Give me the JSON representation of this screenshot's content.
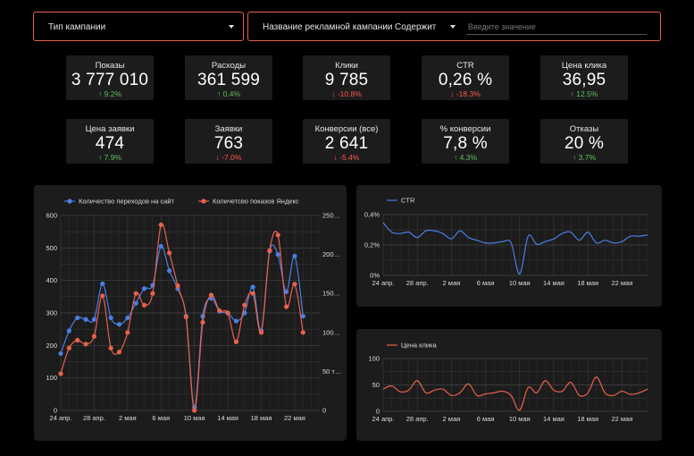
{
  "filters": {
    "campaign_type": {
      "label": "Тип кампании"
    },
    "campaign_name": {
      "label": "Название рекламной кампании",
      "operator": "Содержит",
      "placeholder": "Введите значение"
    }
  },
  "kpis": [
    {
      "title": "Показы",
      "value": "3 777 010",
      "delta": "9.2%",
      "dir": "up"
    },
    {
      "title": "Расходы",
      "value": "361 599",
      "delta": "0.4%",
      "dir": "up"
    },
    {
      "title": "Клики",
      "value": "9 785",
      "delta": "-10.8%",
      "dir": "down"
    },
    {
      "title": "CTR",
      "value": "0,26 %",
      "delta": "-18.3%",
      "dir": "down"
    },
    {
      "title": "Цена клика",
      "value": "36,95",
      "delta": "12.5%",
      "dir": "up"
    },
    {
      "title": "Цена заявки",
      "value": "474",
      "delta": "7.9%",
      "dir": "up"
    },
    {
      "title": "Заявки",
      "value": "763",
      "delta": "-7.0%",
      "dir": "down"
    },
    {
      "title": "Конверсии (все)",
      "value": "2 641",
      "delta": "-5.4%",
      "dir": "down"
    },
    {
      "title": "% конверсии",
      "value": "7,8 %",
      "delta": "4.3%",
      "dir": "up"
    },
    {
      "title": "Отказы",
      "value": "20 %",
      "delta": "3.7%",
      "dir": "up"
    }
  ],
  "colors": {
    "blue": "#4a7fe3",
    "orange": "#e8614c",
    "up": "#5fbf5f",
    "down": "#ff5a4a",
    "accent": "#e8614c"
  },
  "chart_data": [
    {
      "type": "line",
      "x_tick_labels": [
        "24 апр.",
        "28 апр.",
        "2 мая",
        "6 мая",
        "10 мая",
        "14 мая",
        "18 мая",
        "22 мая"
      ],
      "x_range": [
        0,
        31
      ],
      "ylim": [
        0,
        600
      ],
      "y_ticks": [
        "0",
        "100",
        "200",
        "300",
        "400",
        "500",
        "600"
      ],
      "ylim_right": [
        0,
        250000
      ],
      "y_ticks_right": [
        "0",
        "50 т…",
        "100…",
        "150…",
        "200…",
        "250…"
      ],
      "legend_position": "top-left",
      "series": [
        {
          "name": "Количество переходов на сайт",
          "axis": "left",
          "color": "#4a7fe3",
          "values": [
            175,
            245,
            285,
            280,
            280,
            390,
            285,
            265,
            285,
            330,
            375,
            385,
            505,
            430,
            375,
            290,
            10,
            290,
            345,
            305,
            300,
            275,
            300,
            380,
            245,
            490,
            480,
            365,
            475,
            290
          ]
        },
        {
          "name": "Количетсво показов Яндекс",
          "axis": "right",
          "color": "#e8614c",
          "values": [
            47000,
            80000,
            90000,
            85000,
            95000,
            147000,
            80000,
            75000,
            100000,
            150000,
            135000,
            150000,
            238000,
            202000,
            160000,
            120000,
            0,
            113000,
            148000,
            128000,
            125000,
            88000,
            135000,
            150000,
            100000,
            205000,
            225000,
            133000,
            162000,
            100000
          ]
        }
      ]
    },
    {
      "type": "line",
      "x_tick_labels": [
        "24 апр.",
        "28 апр.",
        "2 мая",
        "6 мая",
        "10 мая",
        "14 мая",
        "18 мая",
        "22 мая"
      ],
      "x_range": [
        0,
        31
      ],
      "ylim": [
        0,
        0.45
      ],
      "y_ticks": [
        "0%",
        "0,2%",
        "0,4%"
      ],
      "legend_position": "top-left",
      "series": [
        {
          "name": "CTR",
          "color": "#4a7fe3",
          "values": [
            0.39,
            0.32,
            0.31,
            0.32,
            0.28,
            0.33,
            0.33,
            0.31,
            0.27,
            0.33,
            0.28,
            0.26,
            0.24,
            0.24,
            0.25,
            0.24,
            0.01,
            0.29,
            0.23,
            0.25,
            0.27,
            0.31,
            0.32,
            0.26,
            0.32,
            0.24,
            0.26,
            0.24,
            0.25,
            0.29,
            0.29,
            0.3
          ]
        }
      ]
    },
    {
      "type": "line",
      "x_tick_labels": [
        "24 апр.",
        "28 апр.",
        "2 мая",
        "6 мая",
        "10 мая",
        "14 мая",
        "18 мая",
        "22 мая"
      ],
      "x_range": [
        0,
        31
      ],
      "ylim": [
        0,
        100
      ],
      "y_ticks": [
        "0",
        "50",
        "100"
      ],
      "legend_position": "top-left",
      "series": [
        {
          "name": "Цена клика",
          "color": "#e8614c",
          "values": [
            42,
            48,
            37,
            40,
            58,
            35,
            40,
            42,
            30,
            35,
            52,
            30,
            33,
            35,
            38,
            30,
            2,
            45,
            35,
            58,
            40,
            38,
            55,
            30,
            35,
            65,
            35,
            30,
            38,
            32,
            35,
            42
          ]
        }
      ]
    }
  ]
}
